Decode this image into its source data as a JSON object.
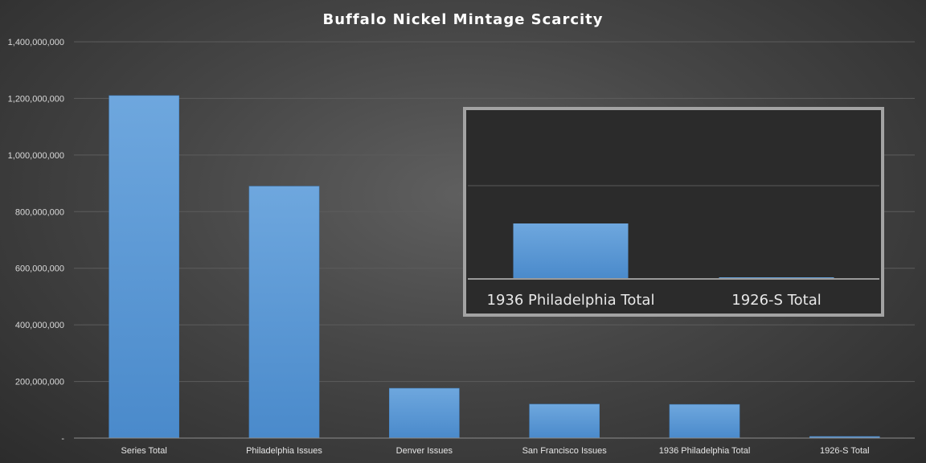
{
  "chart_data": {
    "type": "bar",
    "title": "Buffalo Nickel Mintage Scarcity",
    "xlabel": "",
    "ylabel": "",
    "ylim": [
      0,
      1400000000
    ],
    "yticks": [
      0,
      200000000,
      400000000,
      600000000,
      800000000,
      1000000000,
      1200000000,
      1400000000
    ],
    "ytick_labels": [
      "-",
      "200,000,000",
      "400,000,000",
      "600,000,000",
      "800,000,000",
      "1,000,000,000",
      "1,200,000,000",
      "1,400,000,000"
    ],
    "grid": true,
    "categories": [
      "Series Total",
      "Philadelphia Issues",
      "Denver Issues",
      "San Francisco Issues",
      "1936 Philadelphia Total",
      "1926-S Total"
    ],
    "values": [
      1210000000,
      890000000,
      176000000,
      120000000,
      119000000,
      970000
    ],
    "bar_color": "#5b9bd5",
    "inset": {
      "categories": [
        "1936 Philadelphia Total",
        "1926-S Total"
      ],
      "values": [
        119000000,
        970000
      ]
    }
  }
}
